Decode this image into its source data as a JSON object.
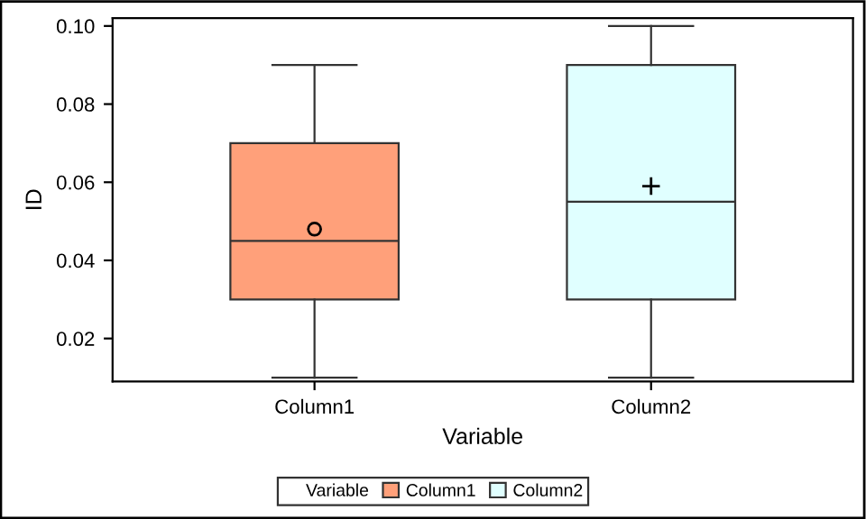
{
  "chart_data": {
    "type": "box",
    "xlabel": "Variable",
    "ylabel": "ID",
    "legend_title": "Variable",
    "legend": "bottom",
    "grid": false,
    "categories": [
      "Column1",
      "Column2"
    ],
    "ylim": [
      0.009,
      0.102
    ],
    "yticks": [
      0.02,
      0.04,
      0.06,
      0.08,
      {
        "value": 0.1,
        "label": "0.10"
      }
    ],
    "series": [
      {
        "name": "Column1",
        "color": "#ffa07a",
        "marker": "circle",
        "boxes": [
          {
            "low": 0.01,
            "q1": 0.03,
            "median": 0.045,
            "q3": 0.07,
            "high": 0.09,
            "mean": 0.048
          },
          null
        ]
      },
      {
        "name": "Column2",
        "color": "#e0ffff",
        "marker": "cross",
        "boxes": [
          null,
          {
            "low": 0.01,
            "q1": 0.03,
            "median": 0.055,
            "q3": 0.09,
            "high": 0.1,
            "mean": 0.059
          }
        ]
      }
    ]
  }
}
